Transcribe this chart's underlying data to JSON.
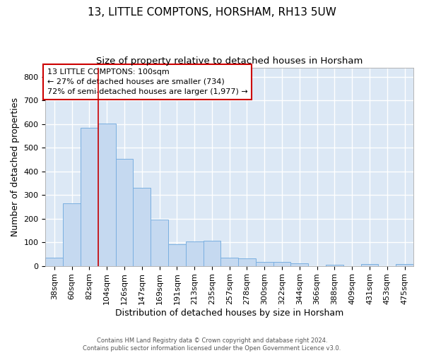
{
  "title": "13, LITTLE COMPTONS, HORSHAM, RH13 5UW",
  "subtitle": "Size of property relative to detached houses in Horsham",
  "xlabel": "Distribution of detached houses by size in Horsham",
  "ylabel": "Number of detached properties",
  "footnote": "Contains HM Land Registry data © Crown copyright and database right 2024.\nContains public sector information licensed under the Open Government Licence v3.0.",
  "categories": [
    "38sqm",
    "60sqm",
    "82sqm",
    "104sqm",
    "126sqm",
    "147sqm",
    "169sqm",
    "191sqm",
    "213sqm",
    "235sqm",
    "257sqm",
    "278sqm",
    "300sqm",
    "322sqm",
    "344sqm",
    "366sqm",
    "388sqm",
    "409sqm",
    "431sqm",
    "453sqm",
    "475sqm"
  ],
  "values": [
    35,
    265,
    585,
    603,
    453,
    330,
    195,
    90,
    102,
    105,
    35,
    32,
    18,
    17,
    12,
    0,
    6,
    0,
    7,
    0,
    7
  ],
  "bar_color": "#c5d9f0",
  "bar_edge_color": "#7aafe0",
  "background_color": "#dce8f5",
  "grid_color": "#ffffff",
  "annotation_text": "13 LITTLE COMPTONS: 100sqm\n← 27% of detached houses are smaller (734)\n72% of semi-detached houses are larger (1,977) →",
  "annotation_box_color": "#cc0000",
  "vline_color": "#cc0000",
  "vline_pos": 2.5,
  "ylim": [
    0,
    840
  ],
  "yticks": [
    0,
    100,
    200,
    300,
    400,
    500,
    600,
    700,
    800
  ],
  "title_fontsize": 11,
  "subtitle_fontsize": 9.5,
  "annotation_fontsize": 8,
  "ylabel_fontsize": 9,
  "xlabel_fontsize": 9,
  "tick_fontsize": 8
}
